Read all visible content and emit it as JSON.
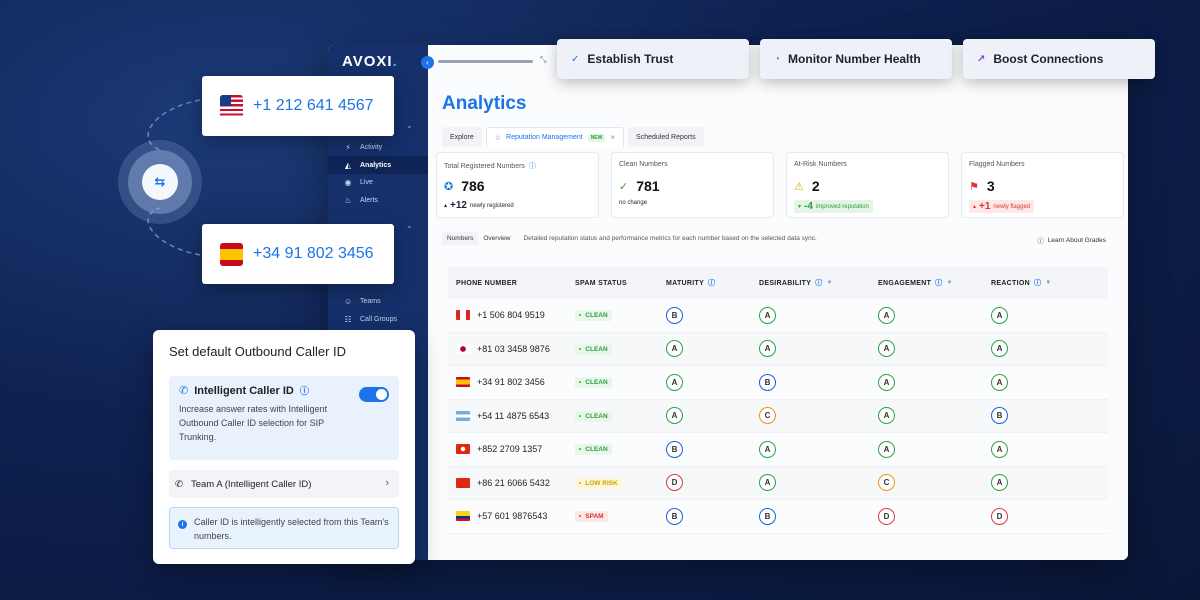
{
  "brand": {
    "logo": "AVOXI",
    "accent": "#1c74e8",
    "sidebar_bg": "#15306b"
  },
  "features": [
    {
      "label": "Establish Trust",
      "icon": "check-circle-icon"
    },
    {
      "label": "Monitor Number Health",
      "icon": "gauge-icon"
    },
    {
      "label": "Boost Connections",
      "icon": "trend-up-icon"
    }
  ],
  "numbers": {
    "us": "+1 212 641 4567",
    "es": "+34 91 802 3456"
  },
  "sidebar": {
    "items": [
      {
        "label": "Activity",
        "icon": "activity-icon"
      },
      {
        "label": "Analytics",
        "icon": "analytics-icon",
        "active": true
      },
      {
        "label": "Live",
        "icon": "live-icon"
      },
      {
        "label": "Alerts",
        "icon": "alerts-icon"
      },
      {
        "label": "Teams",
        "icon": "teams-icon"
      },
      {
        "label": "Call Groups",
        "icon": "call-groups-icon"
      }
    ]
  },
  "page": {
    "title": "Analytics",
    "tabs": [
      {
        "label": "Explore"
      },
      {
        "label": "Reputation Management",
        "badge": "NEW",
        "close": "×"
      },
      {
        "label": "Scheduled Reports"
      }
    ]
  },
  "stats": [
    {
      "label": "Total Registered Numbers",
      "value": "786",
      "delta": "+12",
      "delta_note": "newly registered"
    },
    {
      "label": "Clean Numbers",
      "value": "781",
      "delta": "",
      "delta_note": "no change"
    },
    {
      "label": "At-Risk Numbers",
      "value": "2",
      "delta": "-4",
      "delta_note": "improved reputation"
    },
    {
      "label": "Flagged Numbers",
      "value": "3",
      "delta": "+1",
      "delta_note": "newly flagged"
    }
  ],
  "subtabs": {
    "numbers": "Numbers",
    "overview": "Overview",
    "description": "Detailed reputation status and performance metrics for each number based on the selected data sync.",
    "learn": "Learn About Grades"
  },
  "table": {
    "headers": [
      "PHONE NUMBER",
      "SPAM STATUS",
      "MATURITY",
      "DESIRABILITY",
      "ENGAGEMENT",
      "REACTION"
    ],
    "rows": [
      {
        "flag": "ca",
        "phone": "+1 506 804 9519",
        "spam": "CLEAN",
        "spam_type": "clean",
        "maturity": "B",
        "desirability": "A",
        "engagement": "A",
        "reaction": "A"
      },
      {
        "flag": "jp",
        "phone": "+81 03 3458 9876",
        "spam": "CLEAN",
        "spam_type": "clean",
        "maturity": "A",
        "desirability": "A",
        "engagement": "A",
        "reaction": "A"
      },
      {
        "flag": "es",
        "phone": "+34 91 802 3456",
        "spam": "CLEAN",
        "spam_type": "clean",
        "maturity": "A",
        "desirability": "B",
        "engagement": "A",
        "reaction": "A"
      },
      {
        "flag": "ar",
        "phone": "+54 11 4875 6543",
        "spam": "CLEAN",
        "spam_type": "clean",
        "maturity": "A",
        "desirability": "C",
        "engagement": "A",
        "reaction": "B"
      },
      {
        "flag": "hk",
        "phone": "+852 2709 1357",
        "spam": "CLEAN",
        "spam_type": "clean",
        "maturity": "B",
        "desirability": "A",
        "engagement": "A",
        "reaction": "A"
      },
      {
        "flag": "cn",
        "phone": "+86 21 6066 5432",
        "spam": "LOW RISK",
        "spam_type": "low",
        "maturity": "D",
        "desirability": "A",
        "engagement": "C",
        "reaction": "A"
      },
      {
        "flag": "co",
        "phone": "+57 601 9876543",
        "spam": "SPAM",
        "spam_type": "spamx",
        "maturity": "B",
        "desirability": "B",
        "engagement": "D",
        "reaction": "D"
      }
    ]
  },
  "caller_id": {
    "title": "Set default Outbound Caller ID",
    "feature": "Intelligent Caller ID",
    "description": "Increase answer rates with Intelligent Outbound Caller ID selection for SIP Trunking.",
    "toggle_on": true,
    "team": "Team A (Intelligent Caller ID)",
    "note": "Caller ID is intelligently selected from this Team's numbers."
  }
}
